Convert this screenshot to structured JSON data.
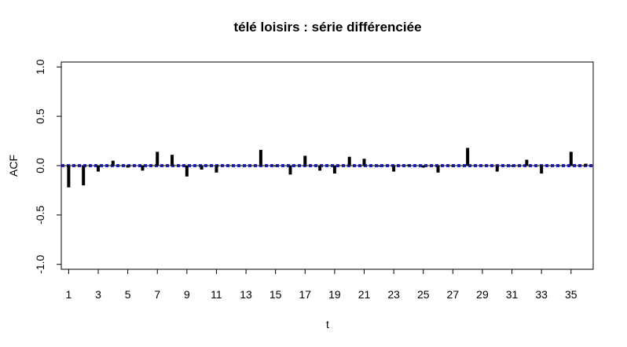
{
  "chart_data": {
    "type": "bar",
    "title": "télé loisirs : série différenciée",
    "xlabel": "t",
    "ylabel": "ACF",
    "xlim": [
      0.5,
      36.5
    ],
    "ylim": [
      -1.05,
      1.05
    ],
    "x_tick_values": [
      1,
      3,
      5,
      7,
      9,
      11,
      13,
      15,
      17,
      19,
      21,
      23,
      25,
      27,
      29,
      31,
      33,
      35
    ],
    "x_tick_labels": [
      "1",
      "3",
      "5",
      "7",
      "9",
      "11",
      "13",
      "15",
      "17",
      "19",
      "21",
      "23",
      "25",
      "27",
      "29",
      "31",
      "33",
      "35"
    ],
    "y_tick_values": [
      -1.0,
      -0.5,
      0.0,
      0.5,
      1.0
    ],
    "y_tick_labels": [
      "-1.0",
      "-0.5",
      "0.0",
      "0.5",
      "1.0"
    ],
    "lags": [
      1,
      2,
      3,
      4,
      5,
      6,
      7,
      8,
      9,
      10,
      11,
      12,
      13,
      14,
      15,
      16,
      17,
      18,
      19,
      20,
      21,
      22,
      23,
      24,
      25,
      26,
      27,
      28,
      29,
      30,
      31,
      32,
      33,
      34,
      35,
      36
    ],
    "values": [
      -0.22,
      -0.2,
      -0.06,
      0.05,
      -0.02,
      -0.05,
      0.14,
      0.11,
      -0.11,
      -0.04,
      -0.07,
      0.0,
      0.0,
      0.16,
      -0.01,
      -0.09,
      0.1,
      -0.05,
      -0.08,
      0.09,
      0.07,
      -0.01,
      -0.06,
      0.01,
      -0.02,
      -0.07,
      -0.01,
      0.18,
      0.0,
      -0.06,
      -0.01,
      0.06,
      -0.08,
      0.0,
      0.14,
      0.02
    ],
    "confidence_bound": 0.01,
    "bar_color": "#000000",
    "ci_color": "#0000ff",
    "grid": false,
    "legend": "none"
  }
}
